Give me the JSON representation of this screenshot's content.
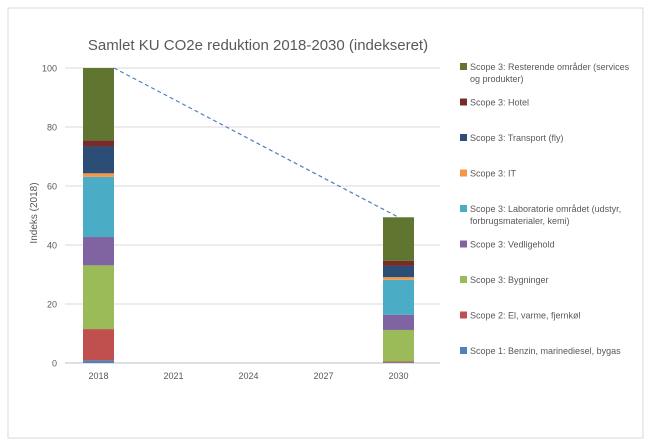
{
  "chart_data": {
    "type": "bar",
    "stacked": true,
    "title": "Samlet KU CO2e reduktion 2018-2030 (indekseret)",
    "xlabel": "",
    "ylabel": "Indeks (2018)",
    "ylim": [
      0,
      100
    ],
    "yticks": [
      "0",
      "20",
      "40",
      "60",
      "80",
      "100"
    ],
    "grid": true,
    "legend_position": "right",
    "categories": [
      "2018",
      "2021",
      "2024",
      "2027",
      "2030"
    ],
    "series": [
      {
        "name": "Scope 1: Benzin, marinediesel, bygas",
        "color": "#4f81bd",
        "values": [
          0.9,
          null,
          null,
          null,
          0.2
        ]
      },
      {
        "name": "Scope 2: El, varme, fjernkøl",
        "color": "#c0504d",
        "values": [
          10.6,
          null,
          null,
          null,
          0.3
        ]
      },
      {
        "name": "Scope 3: Bygninger",
        "color": "#9bbb59",
        "values": [
          21.6,
          null,
          null,
          null,
          10.7
        ]
      },
      {
        "name": "Scope 3: Vedligehold",
        "color": "#8064a2",
        "values": [
          9.6,
          null,
          null,
          null,
          5.1
        ]
      },
      {
        "name": "Scope 3: Laboratorie området (udstyr, forbrugsmaterialer, kemi)",
        "color": "#4bacc6",
        "values": [
          20.4,
          null,
          null,
          null,
          11.9
        ]
      },
      {
        "name": "Scope 3: IT",
        "color": "#f79646",
        "values": [
          1.2,
          null,
          null,
          null,
          0.9
        ]
      },
      {
        "name": "Scope 3: Transport (fly)",
        "color": "#2c4d75",
        "values": [
          9.1,
          null,
          null,
          null,
          3.8
        ]
      },
      {
        "name": "Scope 3: Hotel",
        "color": "#772c2a",
        "values": [
          2.1,
          null,
          null,
          null,
          1.7
        ]
      },
      {
        "name": "Scope 3: Resterende områder (services og produkter)",
        "color": "#5f7530",
        "values": [
          24.5,
          null,
          null,
          null,
          14.8
        ]
      }
    ],
    "trend_line": {
      "style": "dashed",
      "color": "#4f81bd",
      "from": {
        "x": "2018",
        "y": 100
      },
      "to": {
        "x": "2030",
        "y": 49.4
      }
    }
  }
}
